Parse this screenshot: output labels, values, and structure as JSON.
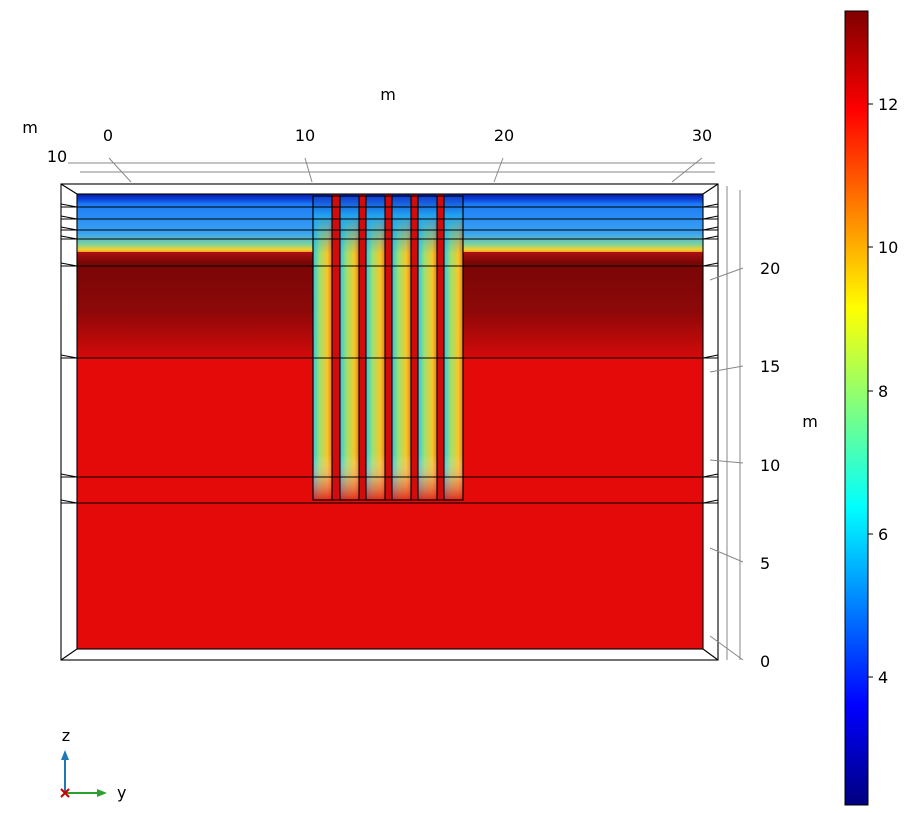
{
  "colors": {
    "background": "#ffffff",
    "frame": "#000000",
    "axis_y": "#2ca02c",
    "axis_z": "#1f77b4",
    "axis_x": "#cc0000"
  },
  "plot": {
    "colormap": "rainbow (dark blue to dark red)",
    "color_range": [
      2.2,
      13.3
    ]
  },
  "axes": {
    "top_unit": "m",
    "left_unit": "m",
    "right_unit": "m",
    "top_ticks": [
      "0",
      "10",
      "20",
      "30"
    ],
    "left_tick": "10",
    "right_ticks": [
      "20",
      "15",
      "10",
      "5",
      "0"
    ]
  },
  "colorbar": {
    "ticks": [
      "12",
      "10",
      "8",
      "6",
      "4"
    ]
  },
  "triad": {
    "z_label": "z",
    "y_label": "y"
  }
}
